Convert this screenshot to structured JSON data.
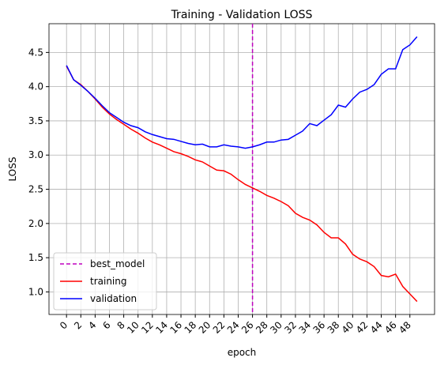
{
  "chart_data": {
    "type": "line",
    "title": "Training - Validation LOSS",
    "xlabel": "epoch",
    "ylabel": "LOSS",
    "x": [
      0,
      1,
      2,
      3,
      4,
      5,
      6,
      7,
      8,
      9,
      10,
      11,
      12,
      13,
      14,
      15,
      16,
      17,
      18,
      19,
      20,
      21,
      22,
      23,
      24,
      25,
      26,
      27,
      28,
      29,
      30,
      31,
      32,
      33,
      34,
      35,
      36,
      37,
      38,
      39,
      40,
      41,
      42,
      43,
      44,
      45,
      46,
      47,
      48,
      49
    ],
    "series": [
      {
        "name": "training",
        "color": "#ff0000",
        "values": [
          4.3,
          4.1,
          4.03,
          3.93,
          3.82,
          3.7,
          3.6,
          3.52,
          3.45,
          3.38,
          3.32,
          3.25,
          3.19,
          3.15,
          3.1,
          3.05,
          3.02,
          2.98,
          2.93,
          2.9,
          2.84,
          2.78,
          2.77,
          2.72,
          2.64,
          2.57,
          2.52,
          2.47,
          2.41,
          2.37,
          2.32,
          2.26,
          2.15,
          2.09,
          2.05,
          1.98,
          1.87,
          1.79,
          1.79,
          1.7,
          1.55,
          1.48,
          1.44,
          1.37,
          1.24,
          1.22,
          1.26,
          1.08,
          0.97,
          0.86
        ]
      },
      {
        "name": "validation",
        "color": "#0000ff",
        "values": [
          4.31,
          4.1,
          4.02,
          3.93,
          3.83,
          3.72,
          3.62,
          3.55,
          3.48,
          3.43,
          3.4,
          3.34,
          3.3,
          3.27,
          3.24,
          3.23,
          3.2,
          3.17,
          3.15,
          3.16,
          3.12,
          3.12,
          3.15,
          3.13,
          3.12,
          3.1,
          3.12,
          3.15,
          3.19,
          3.19,
          3.22,
          3.23,
          3.29,
          3.35,
          3.46,
          3.43,
          3.51,
          3.59,
          3.73,
          3.7,
          3.82,
          3.92,
          3.96,
          4.03,
          4.18,
          4.26,
          4.26,
          4.54,
          4.61,
          4.73
        ]
      }
    ],
    "vlines": [
      {
        "name": "best_model",
        "color": "#bf00bf",
        "x": 26,
        "style": "dashed"
      }
    ],
    "xlim": [
      -2.45,
      51.45
    ],
    "xticks": [
      0,
      2,
      4,
      6,
      8,
      10,
      12,
      14,
      16,
      18,
      20,
      22,
      24,
      26,
      28,
      30,
      32,
      34,
      36,
      38,
      40,
      42,
      44,
      46,
      48
    ],
    "ylim": [
      0.67,
      4.92
    ],
    "yticks": [
      {
        "value": 1,
        "label": "1.0"
      },
      1.5,
      {
        "value": 2,
        "label": "2.0"
      },
      2.5,
      {
        "value": 3,
        "label": "3.0"
      },
      3.5,
      {
        "value": 4,
        "label": "4.0"
      },
      4.5
    ],
    "grid": true,
    "legend": "lower left"
  }
}
